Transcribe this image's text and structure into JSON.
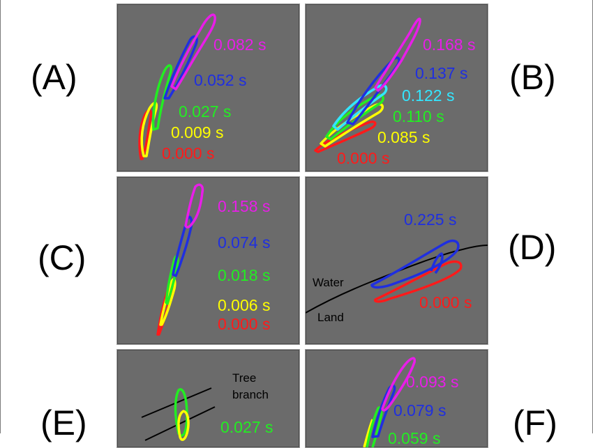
{
  "colors": {
    "panel_bg": "#6b6b6b",
    "t_red": "#ff1a1a",
    "t_yellow": "#ffff00",
    "t_green": "#22ee22",
    "t_cyan": "#33e6ff",
    "t_blue": "#1f2fe0",
    "t_magenta": "#e81ee8"
  },
  "panels": {
    "A": {
      "label": "(A)",
      "times": [
        "0.082 s",
        "0.052 s",
        "0.027 s",
        "0.009 s",
        "0.000 s"
      ]
    },
    "B": {
      "label": "(B)",
      "times": [
        "0.168 s",
        "0.137 s",
        "0.122 s",
        "0.110 s",
        "0.085 s",
        "0.000 s"
      ]
    },
    "C": {
      "label": "(C)",
      "times": [
        "0.158 s",
        "0.074 s",
        "0.018 s",
        "0.006 s",
        "0.000 s"
      ]
    },
    "D": {
      "label": "(D)",
      "times": [
        "0.225 s",
        "0.000 s"
      ],
      "water": "Water",
      "land": "Land"
    },
    "E": {
      "label": "(E)",
      "times": [
        "0.027 s"
      ],
      "tree1": "Tree",
      "tree2": "branch"
    },
    "F": {
      "label": "(F)",
      "times": [
        "0.093 s",
        "0.079 s",
        "0.059 s"
      ]
    }
  }
}
